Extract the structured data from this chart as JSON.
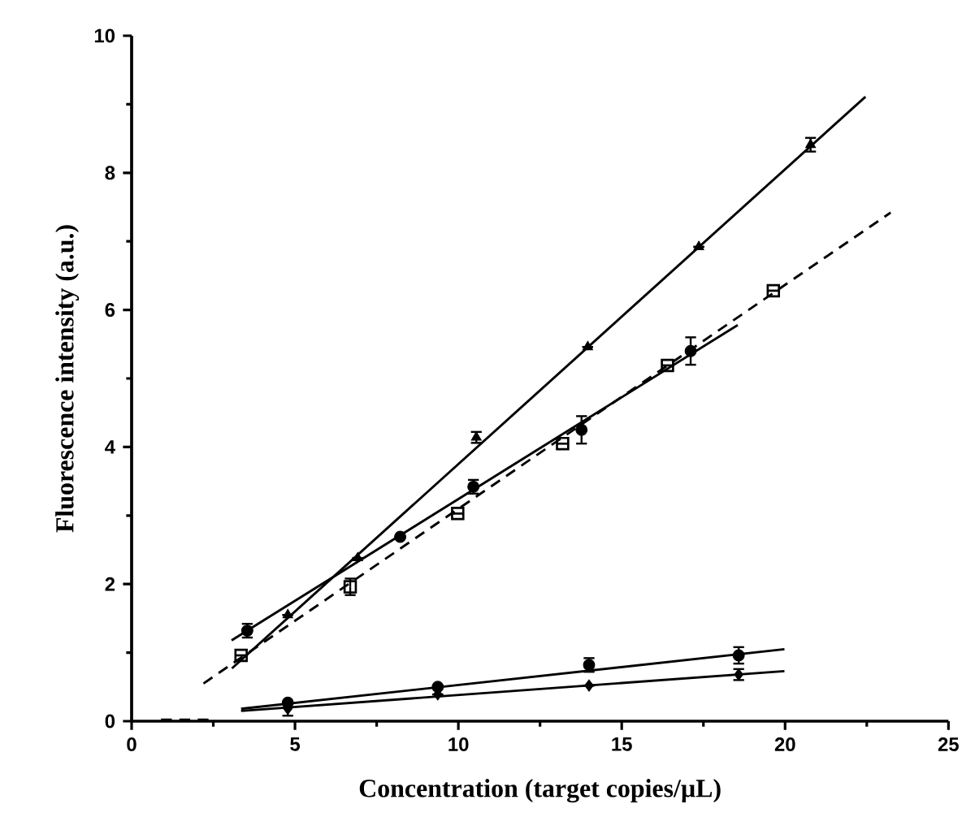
{
  "chart_data": {
    "type": "scatter",
    "xlabel": "Concentration (target copies/µL)",
    "ylabel": "Fluorescence intensity (a.u.)",
    "xlim": [
      0,
      25
    ],
    "ylim": [
      0,
      10
    ],
    "xticks": [
      0,
      5,
      10,
      15,
      20,
      25
    ],
    "yticks": [
      0,
      2,
      4,
      6,
      8,
      10
    ],
    "grid": false,
    "series": [
      {
        "type": "line",
        "color": "#000000",
        "line_style": "solid",
        "marker": "none",
        "x": [
          3.07,
          22.46
        ],
        "values": [
          0.77,
          9.11
        ]
      },
      {
        "type": "line",
        "color": "#000000",
        "line_style": "solid",
        "marker": "none",
        "x": [
          3.06,
          18.55
        ],
        "values": [
          1.18,
          5.78
        ]
      },
      {
        "type": "line",
        "color": "#000000",
        "line_style": "dashed",
        "marker": "none",
        "x": [
          2.2,
          23.23
        ],
        "values": [
          0.55,
          7.42
        ]
      },
      {
        "type": "line",
        "color": "#000000",
        "line_style": "dashed",
        "marker": "none",
        "x": [
          0.9,
          2.5
        ],
        "values": [
          0.02,
          0.02
        ]
      },
      {
        "type": "line",
        "color": "#000000",
        "line_style": "solid",
        "marker": "none",
        "x": [
          3.35,
          19.98
        ],
        "values": [
          0.18,
          1.05
        ]
      },
      {
        "type": "line",
        "color": "#000000",
        "line_style": "solid",
        "marker": "none",
        "x": [
          3.35,
          19.98
        ],
        "values": [
          0.15,
          0.73
        ]
      },
      {
        "color": "#000000",
        "marker": "triangle",
        "x": [
          4.78,
          6.92,
          10.55,
          13.96,
          17.36,
          20.78
        ],
        "values": [
          1.55,
          2.38,
          4.14,
          5.46,
          6.92,
          8.41
        ],
        "errors": [
          null,
          null,
          0.08,
          null,
          null,
          0.1
        ]
      },
      {
        "color": "#000000",
        "marker": "circle",
        "x": [
          3.54,
          6.92,
          8.22,
          10.46,
          13.77,
          17.11
        ],
        "values": [
          1.32,
          null,
          2.69,
          3.42,
          4.25,
          5.4
        ],
        "errors": [
          0.1,
          null,
          null,
          0.1,
          0.2,
          0.2
        ]
      },
      {
        "color": "#000000",
        "marker": "square",
        "x": [
          3.35,
          6.69,
          9.98,
          13.19,
          16.4,
          19.64
        ],
        "values": [
          0.96,
          1.96,
          3.03,
          4.05,
          5.19,
          6.28
        ],
        "errors": [
          null,
          0.12,
          null,
          null,
          null,
          null
        ]
      },
      {
        "color": "#000000",
        "marker": "circle",
        "x": [
          4.78,
          9.37,
          14.0,
          18.58
        ],
        "values": [
          0.27,
          0.5,
          0.82,
          0.96
        ],
        "errors": [
          null,
          null,
          0.1,
          0.12
        ]
      },
      {
        "color": "#000000",
        "marker": "diamond",
        "x": [
          4.78,
          9.37,
          14.0,
          18.58
        ],
        "values": [
          0.18,
          0.39,
          0.52,
          0.68
        ],
        "errors": [
          0.1,
          null,
          null,
          0.08
        ]
      }
    ]
  }
}
